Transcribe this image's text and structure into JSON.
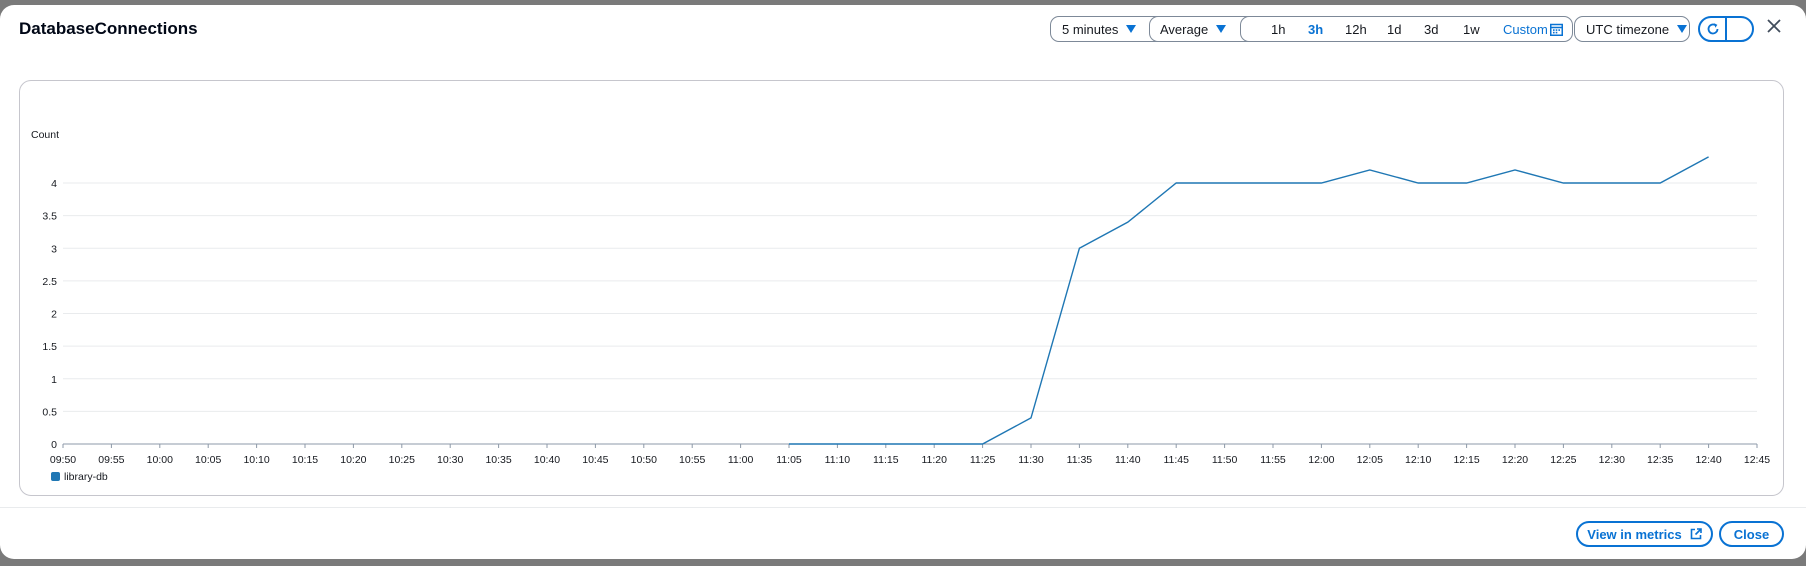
{
  "modal": {
    "title": "DatabaseConnections"
  },
  "controls": {
    "period": "5 minutes",
    "statistic": "Average",
    "time_ranges": [
      "1h",
      "3h",
      "12h",
      "1d",
      "3d",
      "1w"
    ],
    "selected_range": "3h",
    "custom_label": "Custom",
    "timezone": "UTC timezone"
  },
  "footer": {
    "view_in_metrics": "View in metrics",
    "close": "Close"
  },
  "colors": {
    "accent": "#0972d3",
    "series": "#1f77b4"
  },
  "chart_data": {
    "type": "line",
    "ylabel": "Count",
    "ylim": [
      0,
      4.4
    ],
    "y_ticks": [
      "0",
      "0.5",
      "1",
      "1.5",
      "2",
      "2.5",
      "3",
      "3.5",
      "4"
    ],
    "x_ticks": [
      "09:50",
      "09:55",
      "10:00",
      "10:05",
      "10:10",
      "10:15",
      "10:20",
      "10:25",
      "10:30",
      "10:35",
      "10:40",
      "10:45",
      "10:50",
      "10:55",
      "11:00",
      "11:05",
      "11:10",
      "11:15",
      "11:20",
      "11:25",
      "11:30",
      "11:35",
      "11:40",
      "11:45",
      "11:50",
      "11:55",
      "12:00",
      "12:05",
      "12:10",
      "12:15",
      "12:20",
      "12:25",
      "12:30",
      "12:35",
      "12:40",
      "12:45"
    ],
    "legend_position": "bottom-left",
    "grid": true,
    "series": [
      {
        "name": "library-db",
        "x": [
          "11:05",
          "11:10",
          "11:15",
          "11:20",
          "11:25",
          "11:30",
          "11:35",
          "11:40",
          "11:45",
          "11:50",
          "11:55",
          "12:00",
          "12:05",
          "12:10",
          "12:15",
          "12:20",
          "12:25",
          "12:30",
          "12:35",
          "12:40"
        ],
        "values": [
          0,
          0,
          0,
          0,
          0,
          0.4,
          3.0,
          3.4,
          4.0,
          4.0,
          4.0,
          4.0,
          4.2,
          4.0,
          4.0,
          4.2,
          4.0,
          4.0,
          4.0,
          4.4
        ]
      }
    ]
  }
}
